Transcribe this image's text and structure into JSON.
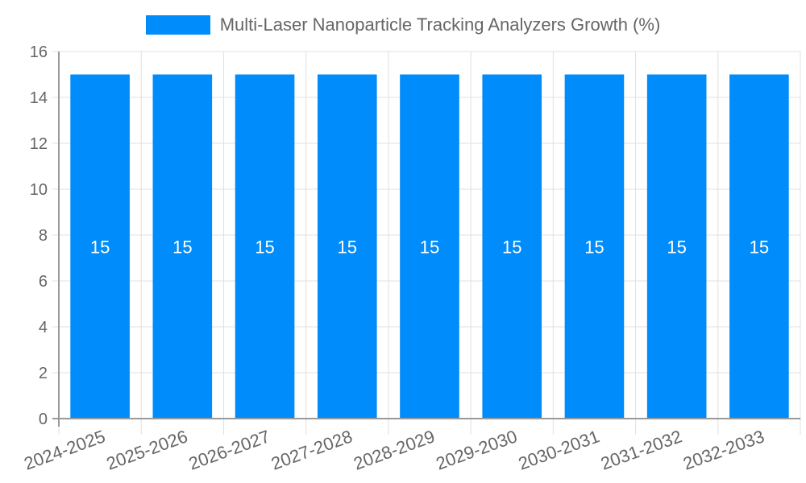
{
  "chart_data": {
    "type": "bar",
    "title": "",
    "categories": [
      "2024-2025",
      "2025-2026",
      "2026-2027",
      "2027-2028",
      "2028-2029",
      "2029-2030",
      "2030-2031",
      "2031-2032",
      "2032-2033"
    ],
    "series": [
      {
        "name": "Multi-Laser Nanoparticle Tracking Analyzers Growth (%)",
        "values": [
          15,
          15,
          15,
          15,
          15,
          15,
          15,
          15,
          15
        ],
        "color": "#008cfa"
      }
    ],
    "xlabel": "",
    "ylabel": "",
    "ylim": [
      0,
      16
    ],
    "yticks": [
      0,
      2,
      4,
      6,
      8,
      10,
      12,
      14,
      16
    ],
    "grid": true,
    "legend_position": "top",
    "data_labels": true
  },
  "legend": {
    "label": "Multi-Laser Nanoparticle Tracking Analyzers Growth (%)",
    "color": "#008cfa"
  }
}
